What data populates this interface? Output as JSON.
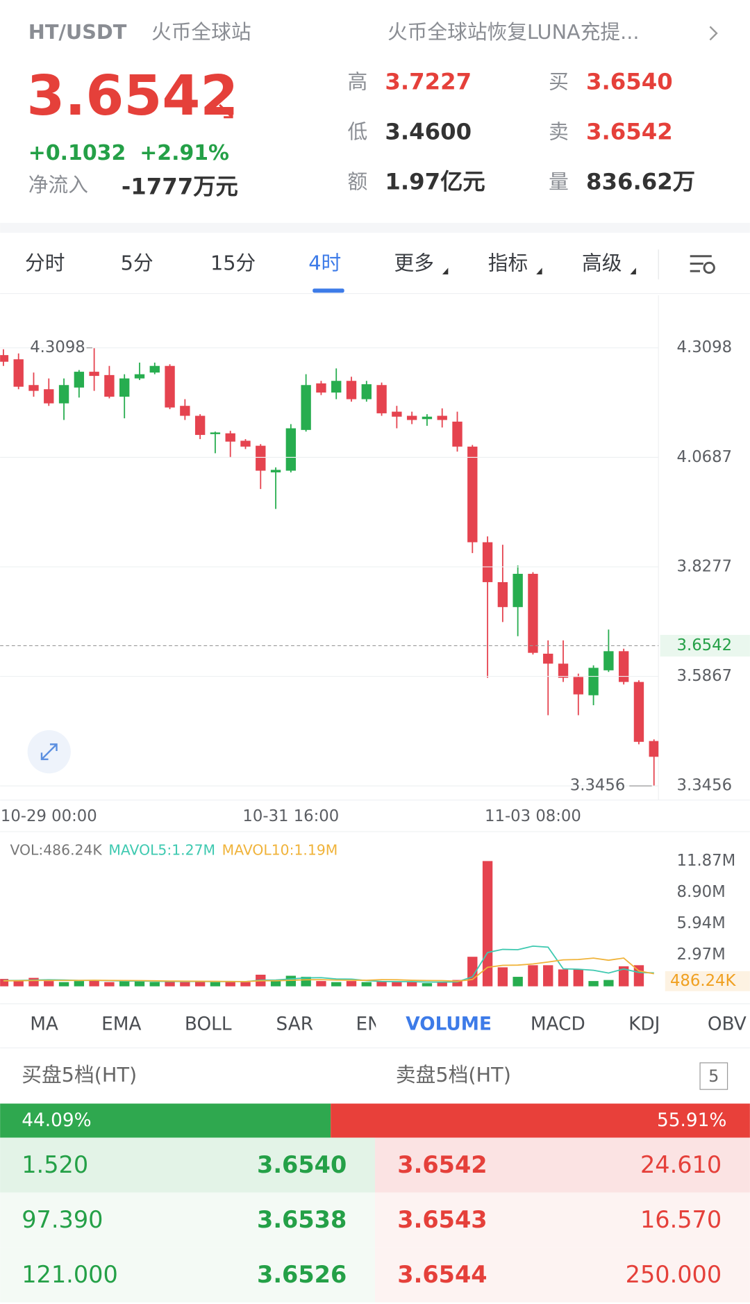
{
  "header": {
    "pair": "HT/USDT",
    "exchange": "火币全球站",
    "notice": "火币全球站恢复LUNA充提...",
    "price": "3.6542",
    "change": "+0.1032",
    "change_pct": "+2.91%",
    "inflow_label": "净流入",
    "inflow": "-1777万元"
  },
  "stats": [
    {
      "label": "高",
      "value": "3.7227"
    },
    {
      "label": "买",
      "value": "3.6540"
    },
    {
      "label": "低",
      "value": "3.4600"
    },
    {
      "label": "卖",
      "value": "3.6542"
    },
    {
      "label": "额",
      "value": "1.97亿元"
    },
    {
      "label": "量",
      "value": "836.62万"
    }
  ],
  "period_tabs": [
    "分时",
    "5分",
    "15分",
    "4时",
    "更多",
    "指标",
    "高级"
  ],
  "indicator_tabs": [
    "MA",
    "EMA",
    "BOLL",
    "SAR",
    "EN",
    "VOLUME",
    "MACD",
    "KDJ",
    "OBV"
  ],
  "chart_data": [
    {
      "type": "candlestick",
      "categories": [
        null,
        null,
        null,
        "10-29 00:00",
        null,
        null,
        null,
        null,
        null,
        null,
        null,
        null,
        null,
        null,
        null,
        null,
        null,
        null,
        null,
        "10-31 16:00",
        null,
        null,
        null,
        null,
        null,
        null,
        null,
        null,
        null,
        null,
        null,
        null,
        null,
        null,
        null,
        "11-03 08:00",
        null,
        null,
        null,
        null,
        null,
        null,
        null,
        null
      ],
      "open": [
        4.2938,
        4.2846,
        4.2279,
        4.2187,
        4.1876,
        4.2224,
        4.2572,
        4.2499,
        4.2023,
        4.2425,
        4.2554,
        4.27,
        4.1821,
        4.1602,
        4.1199,
        4.1217,
        4.1053,
        4.0943,
        4.0357,
        4.0394,
        4.1291,
        4.2316,
        4.2114,
        4.2371,
        4.1968,
        4.2279,
        4.1693,
        4.1602,
        4.1529,
        4.1602,
        4.1474,
        4.0924,
        3.8819,
        3.7941,
        3.7392,
        3.8124,
        3.6366,
        3.6147,
        3.5854,
        3.5451,
        3.6,
        3.6421,
        3.5744,
        3.4444
      ],
      "high": [
        4.3066,
        4.2975,
        4.2554,
        4.2425,
        4.2425,
        4.2609,
        4.3098,
        4.27,
        4.2517,
        4.2773,
        4.2773,
        4.2737,
        4.1968,
        4.1638,
        4.1254,
        4.1272,
        4.1089,
        4.0979,
        4.0467,
        4.1419,
        4.2517,
        4.2371,
        4.2645,
        4.2462,
        4.2371,
        4.2334,
        4.1821,
        4.1693,
        4.1638,
        4.1766,
        4.1693,
        4.0961,
        3.8948,
        3.8764,
        3.8307,
        3.816,
        3.6659,
        3.6659,
        3.5927,
        3.611,
        3.6897,
        3.6476,
        3.5781,
        3.4481
      ],
      "low": [
        4.27,
        4.2187,
        4.2023,
        4.1821,
        4.151,
        4.2004,
        4.2151,
        4.1986,
        4.1547,
        4.2389,
        4.2517,
        4.1748,
        4.151,
        4.1089,
        4.0778,
        4.0686,
        4.087,
        3.9991,
        3.9552,
        4.0357,
        4.1254,
        4.2059,
        4.1968,
        4.1913,
        4.1913,
        4.1602,
        4.1327,
        4.1419,
        4.1382,
        4.1345,
        4.0815,
        3.8581,
        3.5836,
        3.7062,
        3.6751,
        3.6348,
        3.5012,
        3.5744,
        3.5012,
        3.5232,
        3.5964,
        3.5689,
        3.4371,
        3.3456
      ],
      "close": [
        4.2792,
        4.2242,
        4.2151,
        4.1876,
        4.2279,
        4.2572,
        4.248,
        4.2023,
        4.2425,
        4.2517,
        4.27,
        4.1785,
        4.1602,
        4.1181,
        4.1236,
        4.1034,
        4.0924,
        4.0394,
        4.0412,
        4.1327,
        4.2279,
        4.2114,
        4.2371,
        4.1968,
        4.2297,
        4.1657,
        4.1583,
        4.151,
        4.1583,
        4.151,
        4.0924,
        3.8819,
        3.7941,
        3.7392,
        3.8124,
        3.6385,
        3.6147,
        3.5836,
        3.547,
        3.6055,
        3.6421,
        3.5744,
        3.4426,
        3.4097
      ],
      "up_color": "#27ad4f",
      "down_color": "#e5434f",
      "ylim": [
        3.3145,
        4.4256
      ],
      "yticks": [
        3.3456,
        3.5867,
        3.8277,
        4.0687,
        4.3098
      ],
      "grid": true,
      "current_price": 3.6542,
      "high_marker": 4.3098,
      "low_marker": 3.3456
    },
    {
      "type": "bar",
      "series": [
        {
          "name": "VOL:486.24K",
          "values": [
            700000,
            600000,
            800000,
            500000,
            400000,
            500000,
            600000,
            400000,
            500000,
            500000,
            400000,
            500000,
            400000,
            500000,
            400000,
            500000,
            400000,
            1100000,
            600000,
            1000000,
            900000,
            500000,
            400000,
            500000,
            400000,
            500000,
            400000,
            400000,
            300000,
            400000,
            600000,
            2800000,
            11870000,
            1800000,
            900000,
            2000000,
            2000000,
            1600000,
            1600000,
            500000,
            600000,
            1900000,
            2000000,
            486240
          ]
        },
        {
          "name": "MAVOL5:1.27M",
          "color": "#3ec9b0",
          "values": [
            550000,
            560000,
            590000,
            620000,
            600000,
            560000,
            560000,
            540000,
            500000,
            500000,
            480000,
            460000,
            460000,
            460000,
            440000,
            460000,
            440000,
            580000,
            600000,
            700000,
            800000,
            820000,
            700000,
            680000,
            540000,
            460000,
            440000,
            440000,
            400000,
            400000,
            420000,
            900000,
            3200000,
            3500000,
            3470000,
            3810000,
            3710000,
            1660000,
            1620000,
            1520000,
            1260000,
            1640000,
            1320000,
            1270000
          ]
        },
        {
          "name": "MAVOL10:1.19M",
          "color": "#f0b33a",
          "values": [
            520000,
            530000,
            550000,
            560000,
            560000,
            560000,
            570000,
            560000,
            550000,
            540000,
            520000,
            500000,
            490000,
            480000,
            470000,
            460000,
            450000,
            520000,
            530000,
            570000,
            620000,
            630000,
            590000,
            580000,
            570000,
            630000,
            620000,
            570000,
            550000,
            540000,
            480000,
            650000,
            1800000,
            1990000,
            2010000,
            2120000,
            2300000,
            2510000,
            2540000,
            2670000,
            2470000,
            2680000,
            1460000,
            1190000
          ]
        }
      ],
      "ylim": [
        0,
        14500000
      ],
      "yticks": [
        {
          "value": 2970000,
          "label": "2.97M"
        },
        {
          "value": 5940000,
          "label": "5.94M"
        },
        {
          "value": 8900000,
          "label": "8.90M"
        },
        {
          "value": 11870000,
          "label": "11.87M"
        }
      ],
      "current_value": {
        "value": 486240,
        "label": "486.24K"
      }
    }
  ],
  "order_book": {
    "bid_title": "买盘5档(HT)",
    "ask_title": "卖盘5档(HT)",
    "depth": "5",
    "ratio": {
      "values": [
        44.09,
        55.91
      ],
      "value_labels": [
        "44.09%",
        "55.91%"
      ],
      "colors": [
        "#2fa84f",
        "#e8403a"
      ]
    },
    "bids": [
      [
        "1.520",
        "3.6540"
      ],
      [
        "97.390",
        "3.6538"
      ],
      [
        "121.000",
        "3.6526"
      ]
    ],
    "asks": [
      [
        "3.6542",
        "24.610"
      ],
      [
        "3.6543",
        "16.570"
      ],
      [
        "3.6544",
        "250.000"
      ]
    ]
  }
}
